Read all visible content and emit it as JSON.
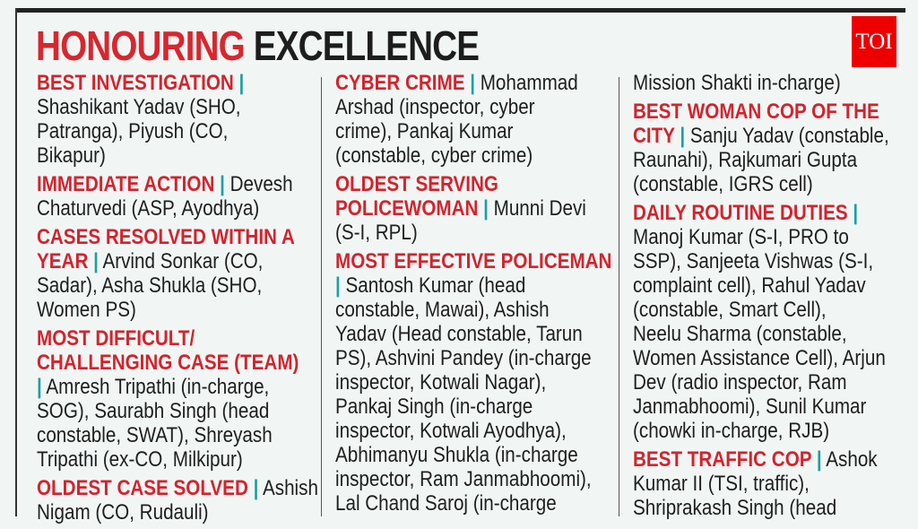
{
  "logo": "TOI",
  "title": {
    "red": "HONOURING",
    "black": "EXCELLENCE"
  },
  "colors": {
    "heading": "#d4232c",
    "pipe": "#1b9fa2",
    "background": "#f1f6f5",
    "logo": "#ee0000"
  },
  "columns": [
    [
      [
        {
          "r": "BEST INVESTIGATION",
          "p": true,
          "t": ""
        },
        {
          "t": "Shashikant Yadav (SHO,"
        },
        {
          "t": "Patranga), Piyush (CO,"
        },
        {
          "t": "Bikapur)"
        }
      ],
      [
        {
          "r": "IMMEDIATE ACTION",
          "p": true,
          "t": " Devesh"
        },
        {
          "t": "Chaturvedi (ASP, Ayodhya)"
        }
      ],
      [
        {
          "r": "CASES RESOLVED WITHIN A"
        },
        {
          "r": "YEAR",
          "p": true,
          "t": " Arvind Sonkar (CO,"
        },
        {
          "t": "Sadar), Asha Shukla (SHO,"
        },
        {
          "t": "Women PS)"
        }
      ],
      [
        {
          "r": "MOST DIFFICULT/"
        },
        {
          "r": "CHALLENGING CASE (TEAM)"
        },
        {
          "p": true,
          "t": " Amresh Tripathi (in-charge,"
        },
        {
          "t": "SOG), Saurabh Singh (head"
        },
        {
          "t": "constable, SWAT), Shreyash"
        },
        {
          "t": "Tripathi (ex-CO, Milkipur)"
        }
      ],
      [
        {
          "r": "OLDEST CASE SOLVED",
          "p": true,
          "t": " Ashish"
        },
        {
          "t": "Nigam (CO, Rudauli)"
        }
      ]
    ],
    [
      [
        {
          "r": "CYBER CRIME",
          "p": true,
          "t": " Mohammad"
        },
        {
          "t": "Arshad (inspector, cyber"
        },
        {
          "t": "crime), Pankaj Kumar"
        },
        {
          "t": "(constable, cyber crime)"
        }
      ],
      [
        {
          "r": "OLDEST SERVING"
        },
        {
          "r": "POLICEWOMAN",
          "p": true,
          "t": " Munni Devi"
        },
        {
          "t": "(S-I, RPL)"
        }
      ],
      [
        {
          "r": "MOST EFFECTIVE POLICEMAN"
        },
        {
          "p": true,
          "t": " Santosh Kumar (head"
        },
        {
          "t": "constable, Mawai), Ashish"
        },
        {
          "t": "Yadav (Head constable, Tarun"
        },
        {
          "t": "PS), Ashvini Pandey (in-charge"
        },
        {
          "t": "inspector, Kotwali Nagar),"
        },
        {
          "t": "Pankaj Singh (in-charge"
        },
        {
          "t": "inspector, Kotwali Ayodhya),"
        },
        {
          "t": "Abhimanyu Shukla (in-charge"
        },
        {
          "t": "inspector, Ram Janmabhoomi),"
        },
        {
          "t": "Lal Chand Saroj (in-charge"
        }
      ]
    ],
    [
      [
        {
          "t": "Mission Shakti in-charge)"
        }
      ],
      [
        {
          "r": "BEST WOMAN COP OF THE"
        },
        {
          "r": "CITY",
          "p": true,
          "t": " Sanju Yadav (constable,"
        },
        {
          "t": "Raunahi), Rajkumari Gupta"
        },
        {
          "t": "(constable, IGRS cell)"
        }
      ],
      [
        {
          "r": "DAILY ROUTINE DUTIES",
          "p": true,
          "t": ""
        },
        {
          "t": "Manoj Kumar (S-I, PRO to"
        },
        {
          "t": "SSP), Sanjeeta Vishwas (S-I,"
        },
        {
          "t": "complaint cell), Rahul Yadav"
        },
        {
          "t": "(constable, Smart Cell),"
        },
        {
          "t": "Neelu Sharma (constable,"
        },
        {
          "t": "Women Assistance Cell), Arjun"
        },
        {
          "t": "Dev (radio inspector, Ram"
        },
        {
          "t": "Janmabhoomi), Sunil Kumar"
        },
        {
          "t": "(chowki in-charge, RJB)"
        }
      ],
      [
        {
          "r": "BEST TRAFFIC COP",
          "p": true,
          "t": " Ashok"
        },
        {
          "t": "Kumar II (TSI, traffic),"
        },
        {
          "t": "Shriprakash Singh (head"
        }
      ]
    ]
  ]
}
